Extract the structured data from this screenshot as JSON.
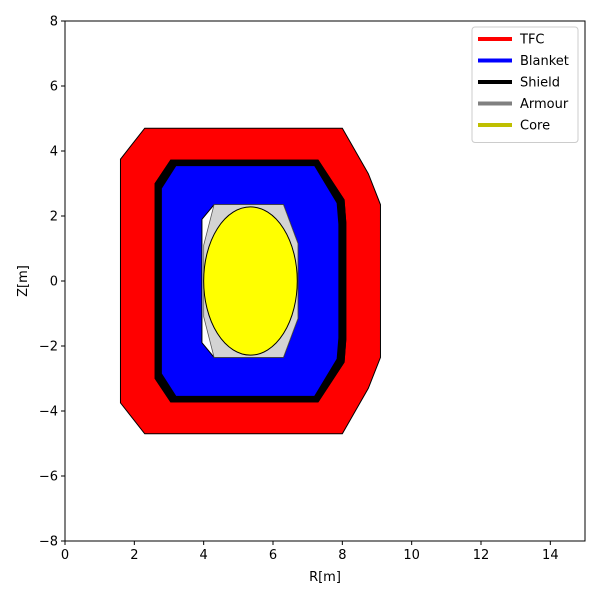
{
  "chart_data": {
    "type": "area",
    "title": "",
    "xlabel": "R[m]",
    "ylabel": "Z[m]",
    "xlim": [
      0,
      15
    ],
    "ylim": [
      -8,
      8
    ],
    "xticks": [
      0,
      2,
      4,
      6,
      8,
      10,
      12,
      14
    ],
    "yticks": [
      -8,
      -6,
      -4,
      -2,
      0,
      2,
      4,
      6,
      8
    ],
    "grid": false,
    "legend_position": "top-right",
    "legend": [
      {
        "label": "TFC",
        "color": "#ff0000"
      },
      {
        "label": "Blanket",
        "color": "#0000ff"
      },
      {
        "label": "Shield",
        "color": "#000000"
      },
      {
        "label": "Armour",
        "color": "#808080"
      },
      {
        "label": "Core",
        "color": "#bfbf00"
      }
    ],
    "series": [
      {
        "name": "TFC",
        "fill": "#ff0000",
        "outer": [
          [
            2.3,
            4.7
          ],
          [
            8.0,
            4.7
          ],
          [
            8.75,
            3.3
          ],
          [
            9.1,
            2.35
          ],
          [
            9.1,
            -2.35
          ],
          [
            8.75,
            -3.3
          ],
          [
            8.0,
            -4.7
          ],
          [
            2.3,
            -4.7
          ],
          [
            1.6,
            -3.75
          ],
          [
            1.6,
            3.75
          ]
        ],
        "inner": [
          [
            3.05,
            3.72
          ],
          [
            7.3,
            3.72
          ],
          [
            8.05,
            2.5
          ],
          [
            8.1,
            1.8
          ],
          [
            8.1,
            -1.8
          ],
          [
            8.05,
            -2.5
          ],
          [
            7.3,
            -3.72
          ],
          [
            3.05,
            -3.72
          ],
          [
            2.6,
            -3.0
          ],
          [
            2.6,
            3.0
          ]
        ]
      },
      {
        "name": "Shield",
        "fill": "#000000",
        "outer": [
          [
            3.05,
            3.72
          ],
          [
            7.3,
            3.72
          ],
          [
            8.05,
            2.5
          ],
          [
            8.1,
            1.8
          ],
          [
            8.1,
            -1.8
          ],
          [
            8.05,
            -2.5
          ],
          [
            7.3,
            -3.72
          ],
          [
            3.05,
            -3.72
          ],
          [
            2.6,
            -3.0
          ],
          [
            2.6,
            3.0
          ]
        ],
        "inner": [
          [
            3.2,
            3.55
          ],
          [
            7.2,
            3.55
          ],
          [
            7.85,
            2.4
          ],
          [
            7.9,
            1.75
          ],
          [
            7.9,
            -1.75
          ],
          [
            7.85,
            -2.4
          ],
          [
            7.2,
            -3.55
          ],
          [
            3.2,
            -3.55
          ],
          [
            2.78,
            -2.85
          ],
          [
            2.78,
            2.85
          ]
        ]
      },
      {
        "name": "Blanket",
        "fill": "#0000ff",
        "outer": [
          [
            3.2,
            3.55
          ],
          [
            7.2,
            3.55
          ],
          [
            7.85,
            2.4
          ],
          [
            7.9,
            1.75
          ],
          [
            7.9,
            -1.75
          ],
          [
            7.85,
            -2.4
          ],
          [
            7.2,
            -3.55
          ],
          [
            3.2,
            -3.55
          ],
          [
            2.78,
            -2.85
          ],
          [
            2.78,
            2.85
          ]
        ],
        "inner": [
          [
            4.3,
            2.35
          ],
          [
            6.3,
            2.35
          ],
          [
            6.72,
            1.15
          ],
          [
            6.72,
            -1.15
          ],
          [
            6.3,
            -2.35
          ],
          [
            4.3,
            -2.35
          ],
          [
            3.95,
            -1.9
          ],
          [
            3.95,
            1.9
          ]
        ]
      },
      {
        "name": "Armour",
        "fill": "#d3d3d3",
        "outer": [
          [
            4.3,
            2.35
          ],
          [
            6.3,
            2.35
          ],
          [
            6.72,
            1.15
          ],
          [
            6.72,
            -1.15
          ],
          [
            6.3,
            -2.35
          ],
          [
            4.3,
            -2.35
          ],
          [
            4.0,
            -1.1
          ],
          [
            4.0,
            1.1
          ]
        ],
        "inner": []
      },
      {
        "name": "Core",
        "fill": "#ffff00",
        "ellipse": {
          "center_r": 5.35,
          "center_z": 0.0,
          "radius_r": 1.35,
          "radius_z": 2.28
        }
      }
    ]
  }
}
